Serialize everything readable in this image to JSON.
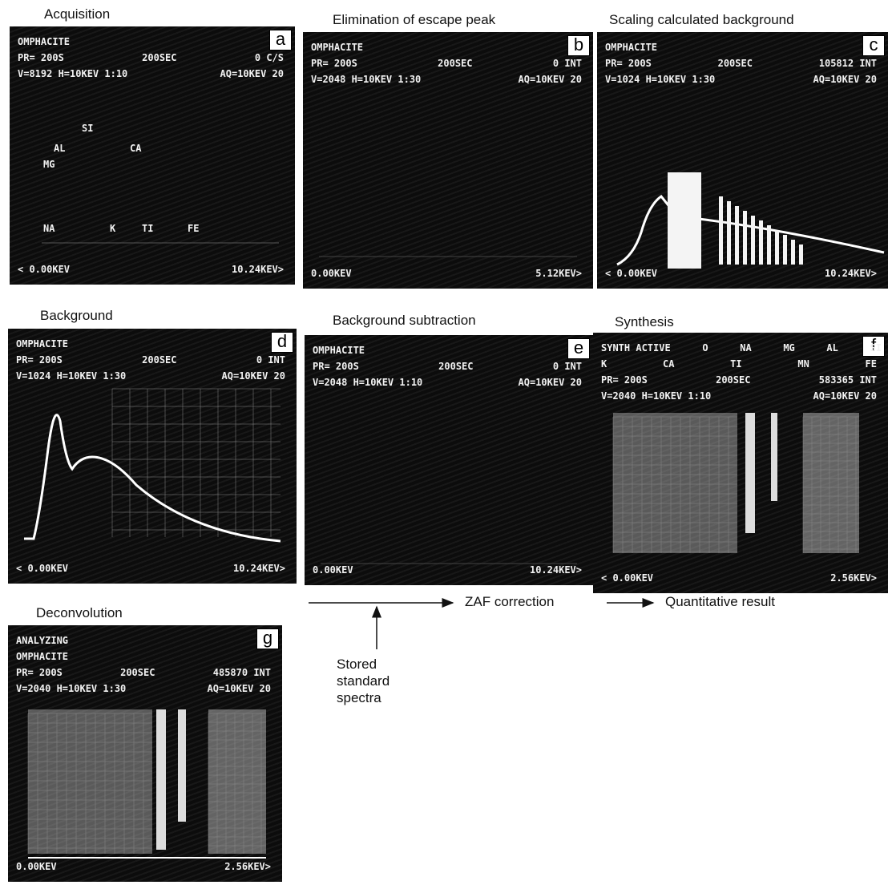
{
  "panels": [
    {
      "title": "Acquisition",
      "letter": "a",
      "lines": [
        [
          "OMPHACITE"
        ],
        [
          "PR= 200S",
          "200SEC",
          "0 C/S"
        ],
        [
          "V=8192 H=10KEV 1:10",
          "AQ=10KEV 20"
        ]
      ],
      "elements": [
        "SI",
        "AL",
        "CA",
        "MG",
        "NA",
        "K",
        "TI",
        "FE"
      ],
      "footer": [
        "< 0.00KEV",
        "10.24KEV>"
      ]
    },
    {
      "title": "Elimination of escape peak",
      "letter": "b",
      "lines": [
        [
          "OMPHACITE"
        ],
        [
          "PR= 200S",
          "200SEC",
          "0 INT"
        ],
        [
          "V=2048 H=10KEV 1:30",
          "AQ=10KEV 20"
        ]
      ],
      "footer": [
        "0.00KEV",
        "5.12KEV>"
      ]
    },
    {
      "title": "Scaling calculated background",
      "letter": "c",
      "lines": [
        [
          "OMPHACITE"
        ],
        [
          "PR= 200S",
          "200SEC",
          "105812 INT"
        ],
        [
          "V=1024 H=10KEV 1:30",
          "AQ=10KEV 20"
        ]
      ],
      "footer": [
        "< 0.00KEV",
        "10.24KEV>"
      ]
    },
    {
      "title": "Background",
      "letter": "d",
      "lines": [
        [
          "OMPHACITE"
        ],
        [
          "PR= 200S",
          "200SEC",
          "0 INT"
        ],
        [
          "V=1024 H=10KEV 1:30",
          "AQ=10KEV 20"
        ]
      ],
      "footer": [
        "< 0.00KEV",
        "10.24KEV>"
      ]
    },
    {
      "title": "Background subtraction",
      "letter": "e",
      "lines": [
        [
          "OMPHACITE"
        ],
        [
          "PR= 200S",
          "200SEC",
          "0 INT"
        ],
        [
          "V=2048 H=10KEV 1:10",
          "AQ=10KEV 20"
        ]
      ],
      "footer": [
        "0.00KEV",
        "10.24KEV>"
      ]
    },
    {
      "title": "Synthesis",
      "letter": "f",
      "lines": [
        [
          "SYNTH ACTIVE",
          "O",
          "NA",
          "MG",
          "AL",
          "SI"
        ],
        [
          "K",
          "CA",
          "TI",
          "MN",
          "FE"
        ],
        [
          "PR= 200S",
          "200SEC",
          "583365 INT"
        ],
        [
          "V=2040 H=10KEV 1:10",
          "AQ=10KEV 20"
        ]
      ],
      "footer": [
        "< 0.00KEV",
        "2.56KEV>"
      ]
    },
    {
      "title": "Deconvolution",
      "letter": "g",
      "lines": [
        [
          "ANALYZING"
        ],
        [
          "OMPHACITE"
        ],
        [
          "PR= 200S",
          "200SEC",
          "485870 INT"
        ],
        [
          "V=2040 H=10KEV 1:30",
          "AQ=10KEV 20"
        ]
      ],
      "footer": [
        "0.00KEV",
        "2.56KEV>"
      ]
    }
  ],
  "flow": {
    "step": "ZAF correction",
    "result": "Quantitative result",
    "input": "Stored standard spectra"
  }
}
